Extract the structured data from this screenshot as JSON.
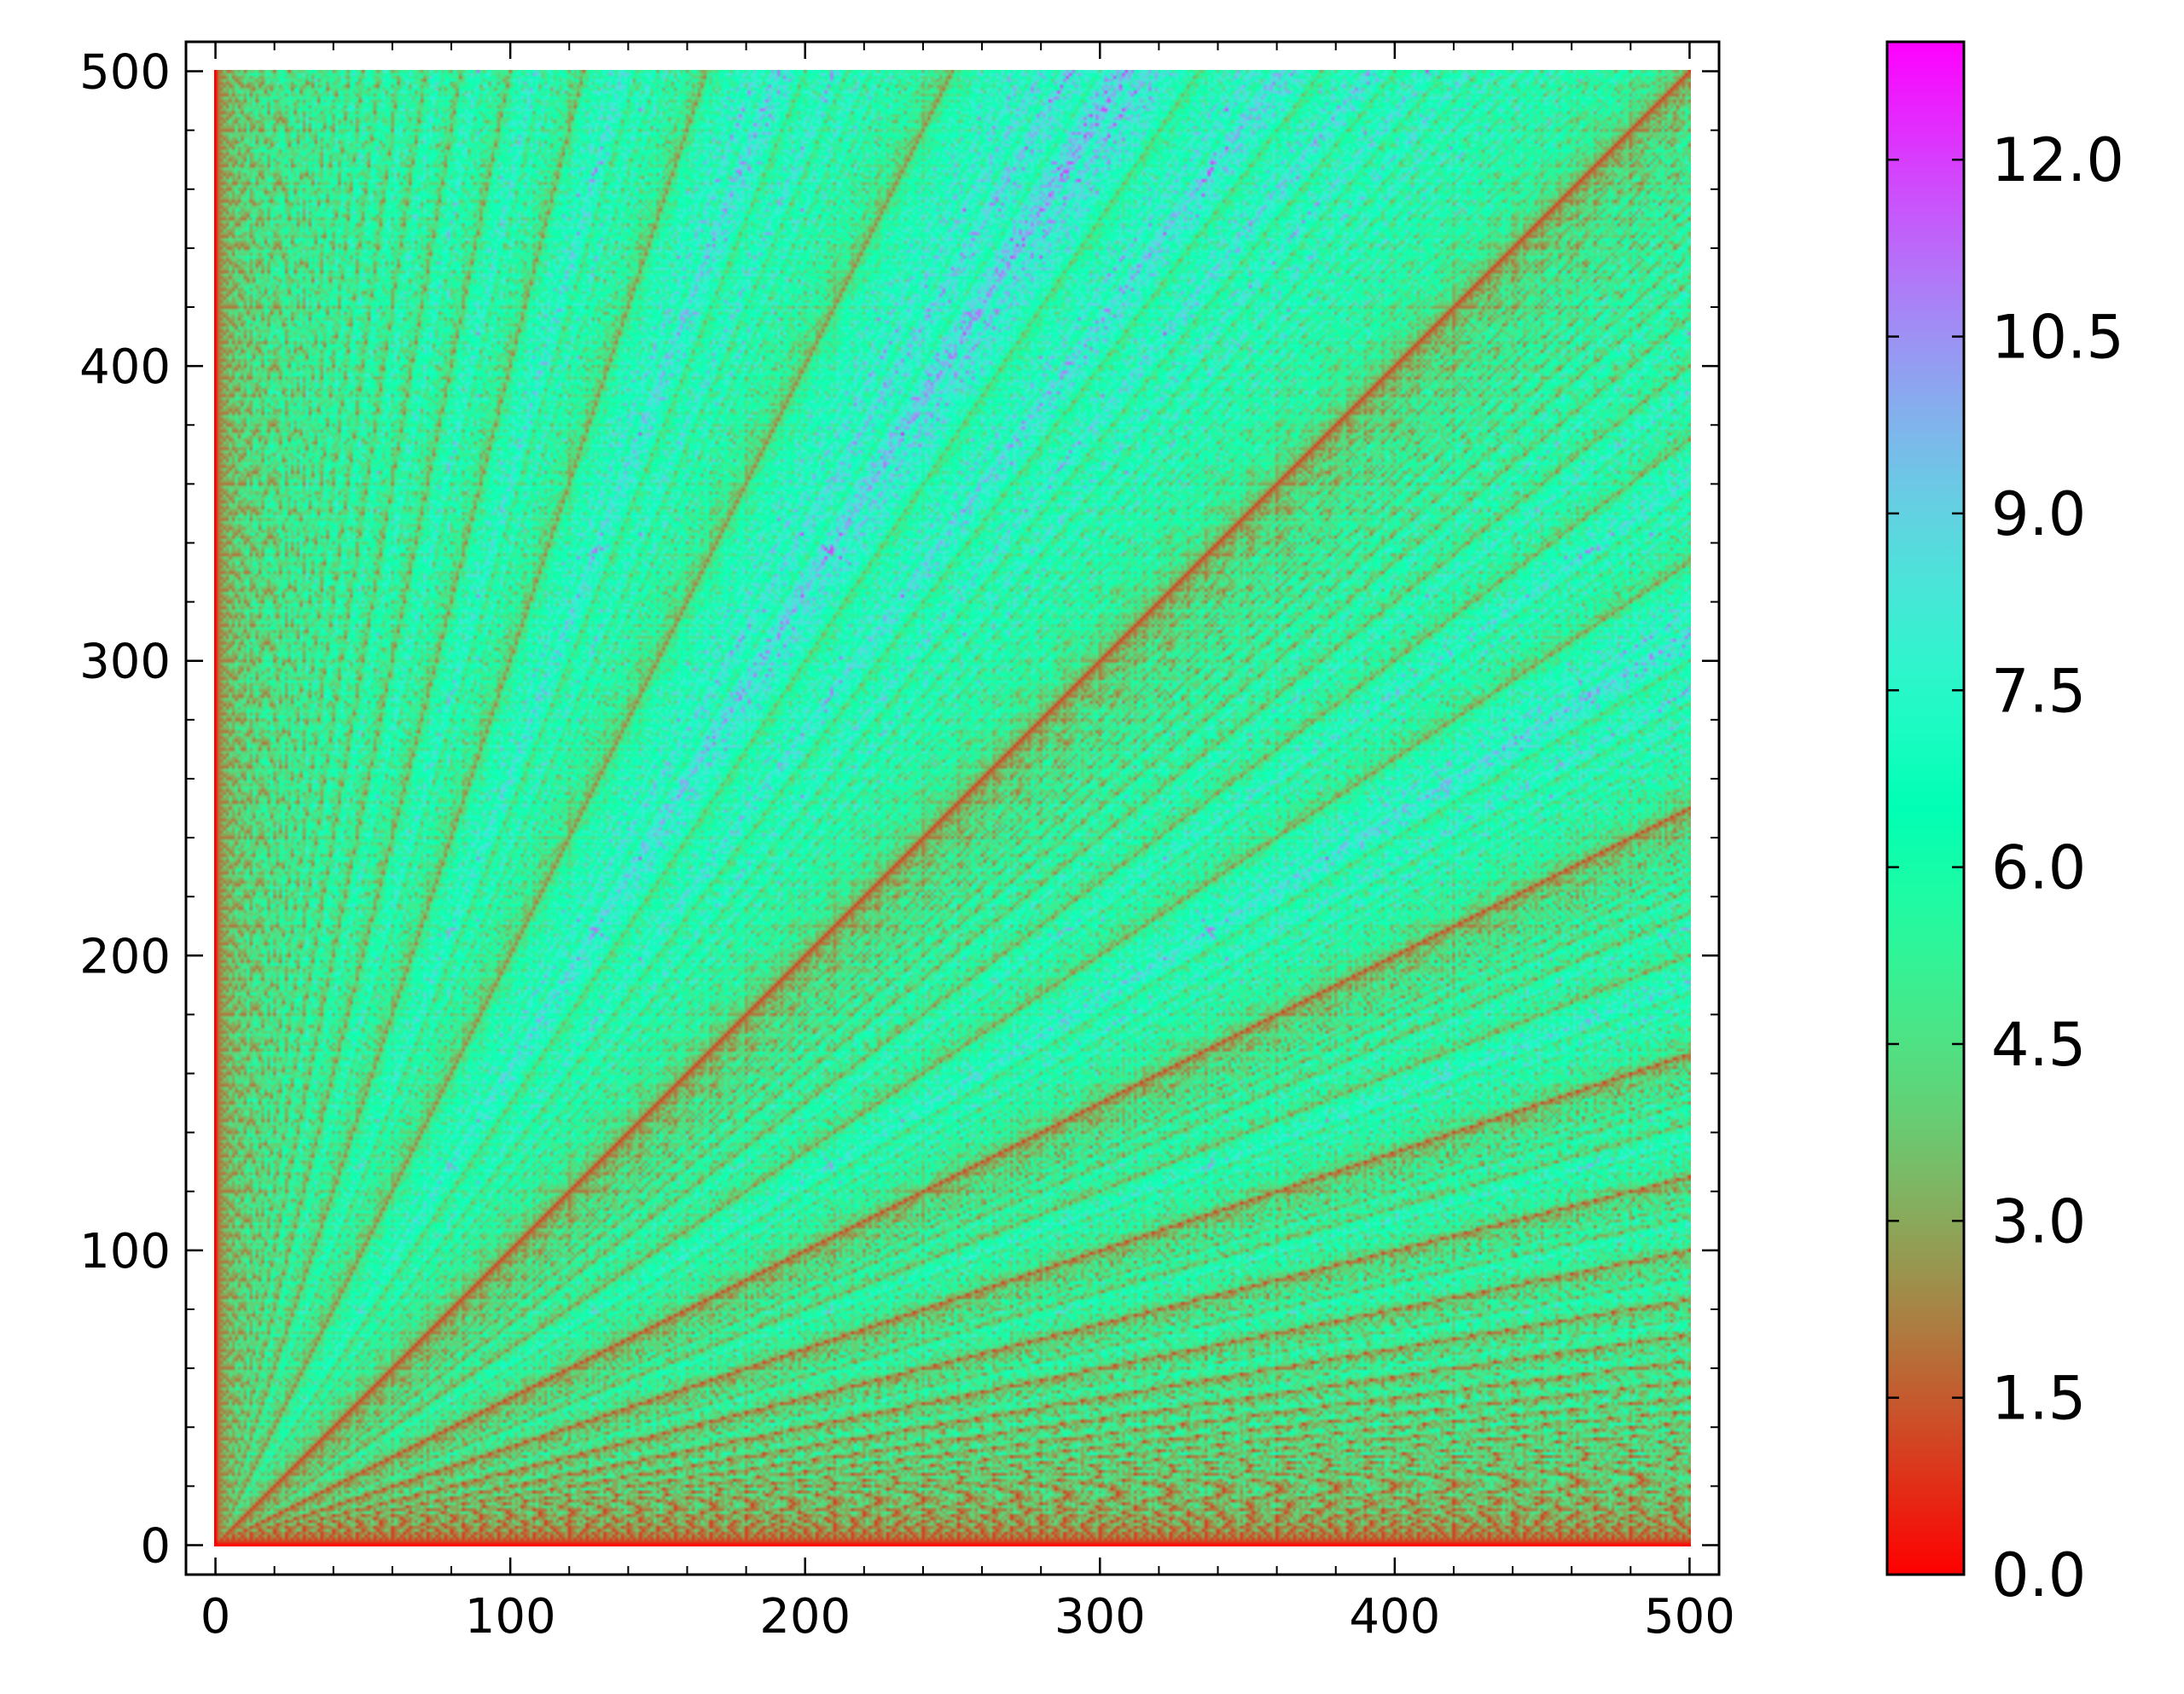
{
  "chart_data": {
    "type": "heatmap",
    "title": "",
    "xlabel": "",
    "ylabel": "",
    "xlim": [
      -10,
      510
    ],
    "ylim": [
      -10,
      510
    ],
    "data_range": {
      "x": [
        0,
        500
      ],
      "y": [
        0,
        500
      ]
    },
    "xticks": [
      0,
      100,
      200,
      300,
      400,
      500
    ],
    "yticks": [
      0,
      100,
      200,
      300,
      400,
      500
    ],
    "xtick_labels": [
      "0",
      "100",
      "200",
      "300",
      "400",
      "500"
    ],
    "ytick_labels": [
      "0",
      "100",
      "200",
      "300",
      "400",
      "500"
    ],
    "minor_tick_step": 20,
    "colormap": "rainbow (reversed: red = low, violet = high)",
    "colorbar": {
      "range": [
        0,
        13
      ],
      "ticks": [
        0.0,
        1.5,
        3.0,
        4.5,
        6.0,
        7.5,
        9.0,
        10.5,
        12.0
      ],
      "tick_labels": [
        "0.0",
        "1.5",
        "3.0",
        "4.5",
        "6.0",
        "7.5",
        "9.0",
        "10.5",
        "12.0"
      ],
      "placement": "right"
    },
    "value_pattern": "number of Euclidean-algorithm steps for gcd(x, y); 0 along the axes, low along rays y = kx and y = x/k, highest (≈12–13) in bands between rays",
    "grid": false,
    "colors": {
      "low": "#ff0000",
      "mid": "#80ffb4",
      "high": "#8000ff"
    }
  }
}
